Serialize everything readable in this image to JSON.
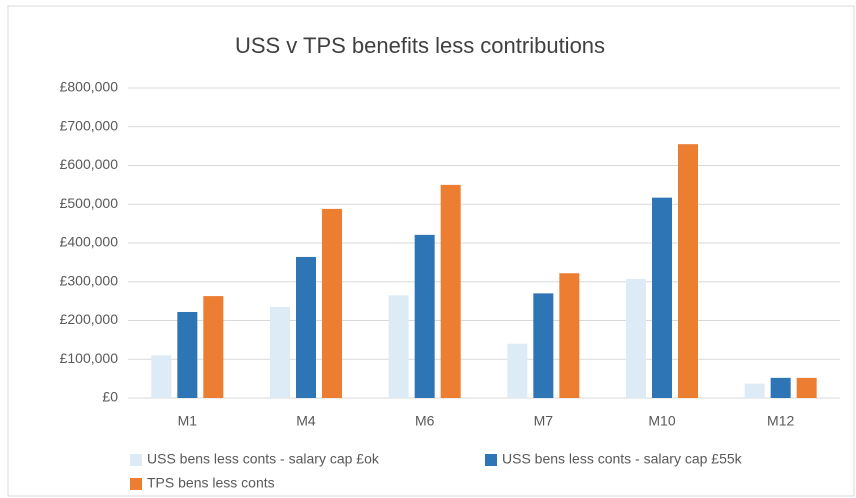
{
  "chart_data": {
    "type": "bar",
    "title": "USS v TPS benefits less contributions",
    "categories": [
      "M1",
      "M4",
      "M6",
      "M7",
      "M10",
      "M12"
    ],
    "series": [
      {
        "name": "USS bens less conts - salary cap £ok",
        "color": "#ddebf7",
        "values": [
          110000,
          235000,
          265000,
          140000,
          307000,
          37000
        ]
      },
      {
        "name": "USS bens less conts - salary cap £55k",
        "color": "#2e75b6",
        "values": [
          222000,
          364000,
          421000,
          270000,
          517000,
          52000
        ]
      },
      {
        "name": "TPS bens less conts",
        "color": "#ed7d31",
        "values": [
          263000,
          488000,
          550000,
          322000,
          655000,
          52000
        ]
      }
    ],
    "ylim": [
      0,
      800000
    ],
    "yticks": [
      {
        "value": 0,
        "label": "£0"
      },
      {
        "value": 100000,
        "label": "£100,000"
      },
      {
        "value": 200000,
        "label": "£200,000"
      },
      {
        "value": 300000,
        "label": "£300,000"
      },
      {
        "value": 400000,
        "label": "£400,000"
      },
      {
        "value": 500000,
        "label": "£500,000"
      },
      {
        "value": 600000,
        "label": "£600,000"
      },
      {
        "value": 700000,
        "label": "£700,000"
      },
      {
        "value": 800000,
        "label": "£800,000"
      }
    ],
    "grid": true,
    "legend": "bottom"
  }
}
